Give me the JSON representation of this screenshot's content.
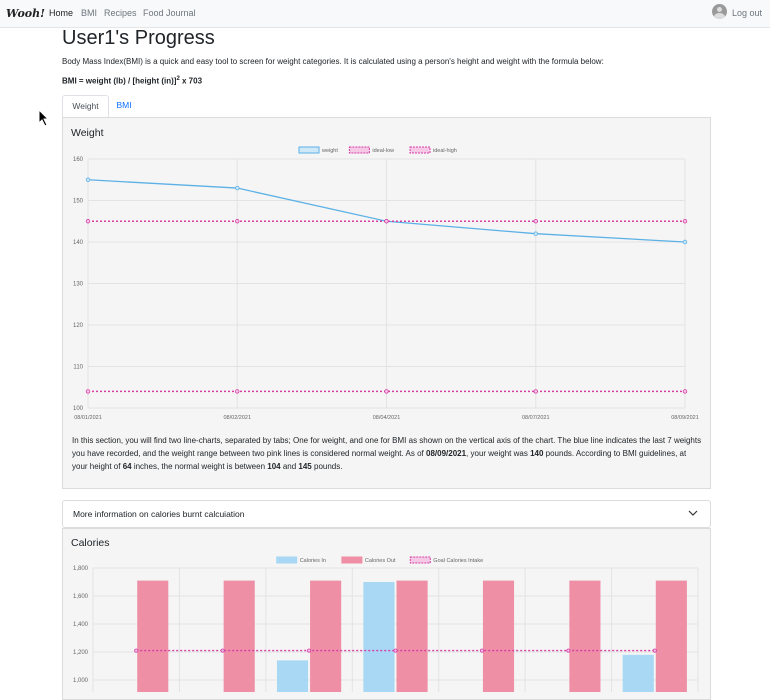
{
  "nav": {
    "brand": "Wooh!",
    "links": [
      "Home",
      "BMI",
      "Recipes",
      "Food Journal"
    ],
    "logout": "Log out"
  },
  "page": {
    "title": "User1's Progress",
    "intro": "Body Mass Index(BMI) is a quick and easy tool to screen for weight categories. It is calculated using a person's height and weight with the formula below:",
    "formula_part1": "BMI = weight (lb) / [height (in)]",
    "formula_exp": "2",
    "formula_part2": " x 703"
  },
  "tabs": [
    "Weight",
    "BMI"
  ],
  "weight_card": {
    "title": "Weight",
    "desc_1": "In this section, you will find two line-charts, separated by tabs; One for weight, and one for BMI as shown on the vertical axis of the chart. The blue line indicates the last 7 weights you have recorded, and the weight range between two pink lines is considered normal weight. As of ",
    "as_of_date": "08/09/2021",
    "desc_2": ", your weight was ",
    "weight_value": "140",
    "desc_3": " pounds. According to BMI guidelines, at your height of ",
    "height_value": "64",
    "desc_4": " inches, the normal weight is between ",
    "low_value": "104",
    "desc_5": " and ",
    "high_value": "145",
    "desc_6": " pounds."
  },
  "accordion": {
    "label": "More information on calories burnt calcuiation"
  },
  "calories_card": {
    "title": "Calories"
  },
  "colors": {
    "weight_line": "#5bb1e6",
    "ideal_line": "#d63ea6",
    "calories_in": "#a8d8f3",
    "calories_out": "#ee8fa6"
  },
  "chart_data": [
    {
      "type": "line",
      "title": "",
      "legend_position": "top",
      "x": [
        "08/01/2021",
        "08/02/2021",
        "08/04/2021",
        "08/07/2021",
        "08/09/2021"
      ],
      "series": [
        {
          "name": "weight",
          "values": [
            155,
            153,
            145,
            142,
            140
          ]
        },
        {
          "name": "ideal-low",
          "values": [
            104,
            104,
            104,
            104,
            104
          ]
        },
        {
          "name": "ideal-high",
          "values": [
            145,
            145,
            145,
            145,
            145
          ]
        }
      ],
      "yticks": [
        100,
        110,
        120,
        130,
        140,
        150,
        160
      ],
      "ylim": [
        100,
        160
      ],
      "grid": true
    },
    {
      "type": "bar",
      "title": "",
      "legend_position": "top",
      "categories": [
        "",
        "",
        "",
        "",
        "",
        "",
        ""
      ],
      "series": [
        {
          "name": "Calories In",
          "values": [
            null,
            null,
            1140,
            1700,
            null,
            null,
            1180
          ]
        },
        {
          "name": "Calories Out",
          "values": [
            1710,
            1710,
            1710,
            1710,
            1710,
            1710,
            1710
          ]
        },
        {
          "name": "Goal Calories Intake",
          "values": [
            1210,
            1210,
            1210,
            1210,
            1210,
            1210,
            1210
          ]
        }
      ],
      "yticks": [
        "1,000",
        "1,200",
        "1,400",
        "1,600",
        "1,800"
      ],
      "ylim": [
        1000,
        1800
      ],
      "grid": true
    }
  ]
}
